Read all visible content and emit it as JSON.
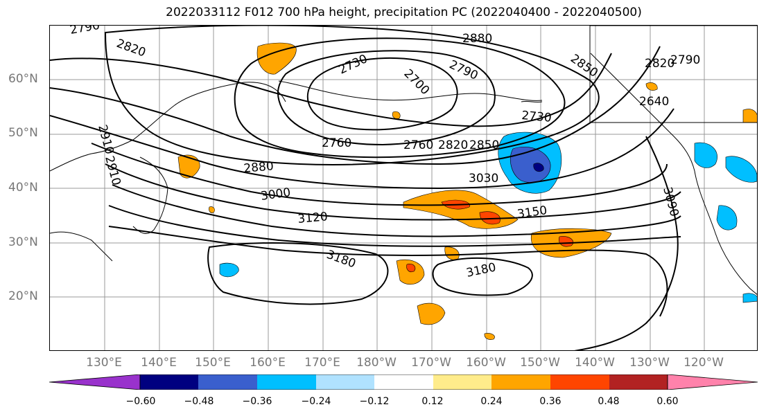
{
  "title": "2022033112 F012 700 hPa height, precipitation PC (2022040400 - 2022040500)",
  "latitude_labels": [
    "60°N",
    "50°N",
    "40°N",
    "30°N",
    "20°N"
  ],
  "longitude_labels": [
    "130°E",
    "140°E",
    "150°E",
    "160°E",
    "170°E",
    "180°W",
    "170°W",
    "160°W",
    "150°W",
    "140°W",
    "130°W",
    "120°W"
  ],
  "contour_labels": [
    "2790",
    "2820",
    "2880",
    "2730",
    "2700",
    "2790",
    "2850",
    "2760",
    "2820",
    "2790",
    "2730",
    "2640",
    "2910",
    "2910",
    "2760",
    "2820",
    "2850",
    "2880",
    "3030",
    "3000",
    "3120",
    "3150",
    "3090",
    "3180",
    "3180"
  ],
  "colorbar": {
    "ticks": [
      "−0.60",
      "−0.48",
      "−0.36",
      "−0.24",
      "−0.12",
      "0.12",
      "0.24",
      "0.36",
      "0.48",
      "0.60"
    ],
    "colors": [
      "#9932cc",
      "#000080",
      "#3a5fcd",
      "#00bfff",
      "#b0e2ff",
      "#ffffff",
      "#ffec8b",
      "#ffa500",
      "#ff4500",
      "#b22222",
      "#ff82ab"
    ]
  },
  "precip_colors": {
    "neg_light": "#b0e2ff",
    "neg_mid": "#00bfff",
    "neg_strong": "#3a5fcd",
    "neg_max": "#000080",
    "pos_light": "#ffec8b",
    "pos_mid": "#ffa500",
    "pos_strong": "#ff4500"
  }
}
